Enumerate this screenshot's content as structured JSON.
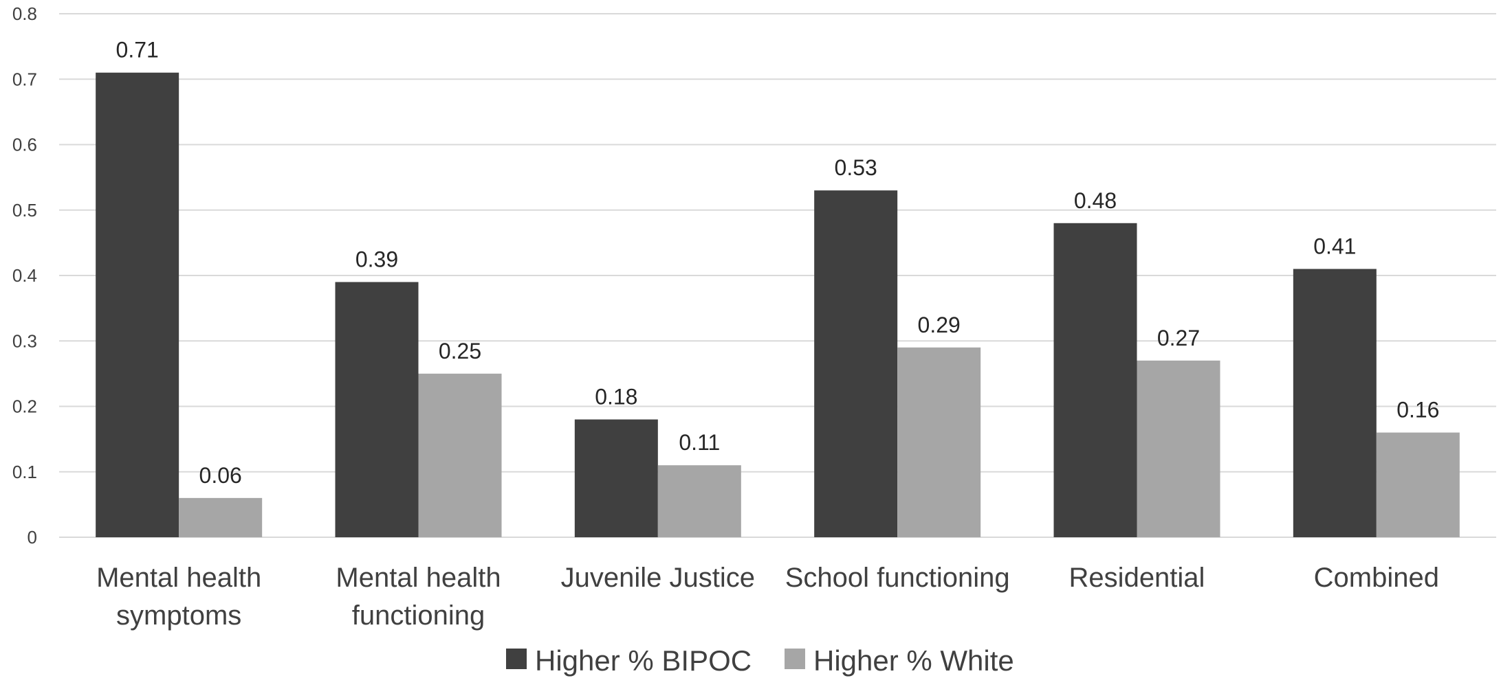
{
  "chart_data": {
    "type": "bar",
    "title": "",
    "xlabel": "",
    "ylabel": "",
    "categories": [
      [
        "Mental health",
        "symptoms"
      ],
      [
        "Mental health",
        "functioning"
      ],
      [
        "Juvenile Justice"
      ],
      [
        "School functioning"
      ],
      [
        "Residential"
      ],
      [
        "Combined"
      ]
    ],
    "series": [
      {
        "name": "Higher % BIPOC",
        "color": "#404040",
        "values": [
          0.71,
          0.39,
          0.18,
          0.53,
          0.48,
          0.41
        ]
      },
      {
        "name": "Higher % White",
        "color": "#a6a6a6",
        "values": [
          0.06,
          0.25,
          0.11,
          0.29,
          0.27,
          0.16
        ]
      }
    ],
    "ylim": [
      0,
      0.8
    ],
    "yticks": [
      "0",
      "0.1",
      "0.2",
      "0.3",
      "0.4",
      "0.5",
      "0.6",
      "0.7",
      "0.8"
    ],
    "grid": true,
    "gridColor": "#d9d9d9",
    "legend": "bottom-center",
    "data_labels": true
  }
}
